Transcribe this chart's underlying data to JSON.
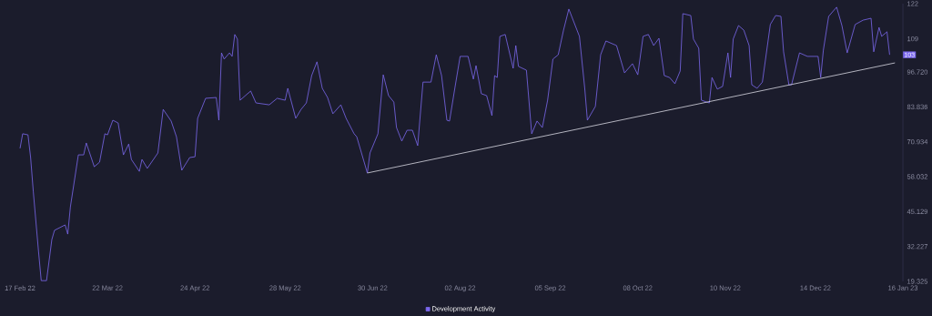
{
  "chart_data": {
    "type": "line",
    "x": [
      "2022-02-17",
      "2022-02-18",
      "2022-02-20",
      "2022-02-21",
      "2022-02-22",
      "2022-02-24",
      "2022-02-25",
      "2022-02-27",
      "2022-03-01",
      "2022-03-02",
      "2022-03-06",
      "2022-03-07",
      "2022-03-08",
      "2022-03-11",
      "2022-03-13",
      "2022-03-14",
      "2022-03-17",
      "2022-03-19",
      "2022-03-21",
      "2022-03-22",
      "2022-03-24",
      "2022-03-26",
      "2022-03-28",
      "2022-03-30",
      "2022-03-31",
      "2022-04-03",
      "2022-04-04",
      "2022-04-06",
      "2022-04-10",
      "2022-04-12",
      "2022-04-15",
      "2022-04-17",
      "2022-04-19",
      "2022-04-22",
      "2022-04-24",
      "2022-04-25",
      "2022-04-28",
      "2022-05-02",
      "2022-05-03",
      "2022-05-04",
      "2022-05-05",
      "2022-05-07",
      "2022-05-08",
      "2022-05-09",
      "2022-05-10",
      "2022-05-11",
      "2022-05-15",
      "2022-05-17",
      "2022-05-22",
      "2022-05-25",
      "2022-05-28",
      "2022-05-29",
      "2022-06-01",
      "2022-06-03",
      "2022-06-05",
      "2022-06-07",
      "2022-06-09",
      "2022-06-11",
      "2022-06-13",
      "2022-06-15",
      "2022-06-18",
      "2022-06-20",
      "2022-06-23",
      "2022-06-24",
      "2022-06-28",
      "2022-06-29",
      "2022-07-02",
      "2022-07-04",
      "2022-07-06",
      "2022-07-08",
      "2022-07-09",
      "2022-07-11",
      "2022-07-13",
      "2022-07-15",
      "2022-07-17",
      "2022-07-19",
      "2022-07-22",
      "2022-07-24",
      "2022-07-26",
      "2022-07-28",
      "2022-07-29",
      "2022-07-31",
      "2022-08-02",
      "2022-08-05",
      "2022-08-07",
      "2022-08-08",
      "2022-08-10",
      "2022-08-12",
      "2022-08-14",
      "2022-08-15",
      "2022-08-16",
      "2022-08-17",
      "2022-08-19",
      "2022-08-22",
      "2022-08-23",
      "2022-08-24",
      "2022-08-27",
      "2022-08-29",
      "2022-08-31",
      "2022-09-02",
      "2022-09-04",
      "2022-09-06",
      "2022-09-08",
      "2022-09-10",
      "2022-09-12",
      "2022-09-16",
      "2022-09-18",
      "2022-09-19",
      "2022-09-22",
      "2022-09-24",
      "2022-09-26",
      "2022-09-30",
      "2022-10-03",
      "2022-10-06",
      "2022-10-08",
      "2022-10-10",
      "2022-10-12",
      "2022-10-14",
      "2022-10-16",
      "2022-10-18",
      "2022-10-20",
      "2022-10-22",
      "2022-10-24",
      "2022-10-25",
      "2022-10-28",
      "2022-10-29",
      "2022-10-31",
      "2022-11-01",
      "2022-11-04",
      "2022-11-05",
      "2022-11-07",
      "2022-11-09",
      "2022-11-11",
      "2022-11-12",
      "2022-11-13",
      "2022-11-15",
      "2022-11-17",
      "2022-11-19",
      "2022-11-20",
      "2022-11-22",
      "2022-11-24",
      "2022-11-27",
      "2022-11-29",
      "2022-12-01",
      "2022-12-02",
      "2022-12-04",
      "2022-12-05",
      "2022-12-08",
      "2022-12-11",
      "2022-12-15",
      "2022-12-16",
      "2022-12-17",
      "2022-12-19",
      "2022-12-22",
      "2022-12-24",
      "2022-12-26",
      "2022-12-29",
      "2023-01-01",
      "2023-01-04",
      "2023-01-05",
      "2023-01-07",
      "2023-01-08",
      "2023-01-10",
      "2023-01-11"
    ],
    "series": [
      {
        "name": "Development Activity",
        "color": "#7b68ee",
        "values": [
          68.5,
          73.9,
          73.5,
          65.1,
          52.6,
          30.1,
          19.6,
          19.6,
          34.8,
          38.2,
          40.2,
          36.8,
          46.9,
          66.1,
          66.1,
          70.5,
          61.7,
          63.4,
          73.9,
          73.5,
          78.9,
          77.9,
          66.1,
          70.1,
          64.4,
          60.0,
          64.4,
          61.1,
          66.8,
          82.9,
          78.6,
          72.8,
          60.4,
          65.1,
          65.4,
          79.6,
          87.0,
          87.3,
          78.9,
          103.8,
          101.5,
          103.8,
          102.5,
          110.6,
          108.9,
          86.3,
          89.7,
          85.3,
          84.6,
          87.0,
          86.3,
          90.7,
          79.6,
          82.9,
          85.3,
          95.4,
          100.5,
          90.7,
          87.3,
          81.3,
          84.6,
          79.6,
          73.9,
          72.8,
          59.4,
          66.8,
          73.9,
          95.7,
          88.0,
          85.6,
          76.2,
          71.2,
          75.2,
          75.2,
          69.5,
          93.0,
          93.0,
          103.1,
          95.4,
          78.9,
          78.6,
          90.7,
          102.5,
          102.5,
          94.1,
          99.1,
          88.7,
          88.0,
          80.6,
          95.4,
          94.7,
          109.9,
          110.6,
          98.1,
          106.5,
          98.8,
          97.4,
          73.9,
          78.6,
          76.2,
          86.3,
          101.5,
          103.1,
          112.2,
          120.0,
          109.9,
          90.7,
          78.9,
          84.0,
          103.1,
          108.2,
          106.5,
          96.4,
          99.8,
          95.7,
          109.9,
          110.6,
          106.5,
          109.2,
          95.4,
          94.7,
          92.4,
          97.1,
          118.3,
          117.6,
          108.9,
          105.5,
          86.3,
          85.3,
          94.7,
          90.4,
          91.4,
          103.8,
          94.7,
          108.9,
          113.9,
          112.2,
          106.5,
          92.0,
          90.7,
          93.0,
          114.3,
          117.6,
          117.3,
          104.2,
          92.0,
          92.0,
          103.8,
          102.5,
          102.5,
          94.7,
          104.8,
          117.3,
          120.7,
          113.9,
          103.8,
          114.3,
          115.9,
          116.6,
          104.2,
          113.2,
          109.9,
          111.6,
          103.1
        ]
      },
      {
        "type": "line",
        "color": "#d9d9e3",
        "x": [
          "2022-06-28",
          "2023-01-13"
        ],
        "values": [
          59.4,
          100.1
        ]
      }
    ],
    "xlim": [
      "2022-02-17",
      "2023-01-16"
    ],
    "xticks": [
      {
        "value": "2022-02-17",
        "label": "17 Feb 22"
      },
      {
        "value": "2022-03-22",
        "label": "22 Mar 22"
      },
      {
        "value": "2022-04-24",
        "label": "24 Apr 22"
      },
      {
        "value": "2022-05-28",
        "label": "28 May 22"
      },
      {
        "value": "2022-06-30",
        "label": "30 Jun 22"
      },
      {
        "value": "2022-08-02",
        "label": "02 Aug 22"
      },
      {
        "value": "2022-09-05",
        "label": "05 Sep 22"
      },
      {
        "value": "2022-10-08",
        "label": "08 Oct 22"
      },
      {
        "value": "2022-11-10",
        "label": "10 Nov 22"
      },
      {
        "value": "2022-12-14",
        "label": "14 Dec 22"
      },
      {
        "value": "2023-01-16",
        "label": "16 Jan 23"
      }
    ],
    "ylim": [
      19.325,
      122
    ],
    "yticks": [
      19.325,
      32.227,
      45.129,
      58.032,
      70.934,
      83.836,
      {
        "value": 96.72,
        "label": "96.720"
      },
      109,
      122
    ],
    "legend": "bottom",
    "annotations": [
      "103"
    ]
  }
}
